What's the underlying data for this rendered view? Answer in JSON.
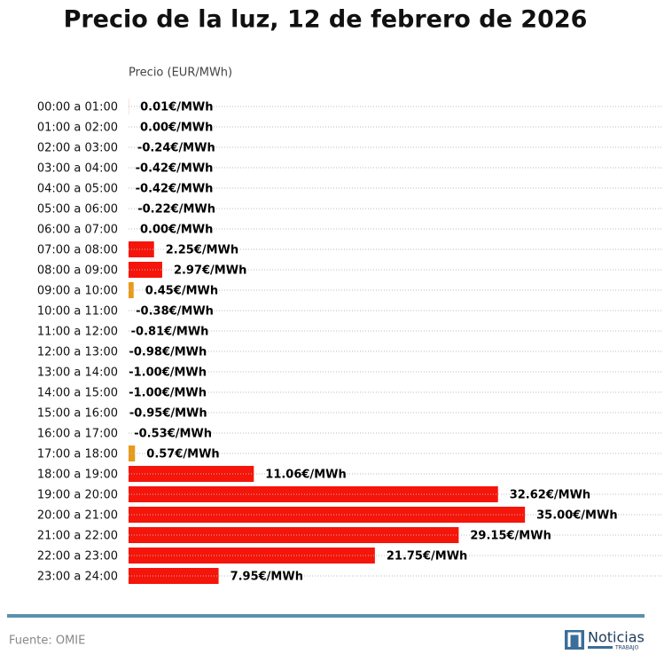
{
  "chart_data": {
    "type": "barh",
    "title": "Precio de la luz, 12 de febrero de 2026",
    "xlabel": "Precio (EUR/MWh)",
    "categories": [
      "00:00 a 01:00",
      "01:00 a 02:00",
      "02:00 a 03:00",
      "03:00 a 04:00",
      "04:00 a 05:00",
      "05:00 a 06:00",
      "06:00 a 07:00",
      "07:00 a 08:00",
      "08:00 a 09:00",
      "09:00 a 10:00",
      "10:00 a 11:00",
      "11:00 a 12:00",
      "12:00 a 13:00",
      "13:00 a 14:00",
      "14:00 a 15:00",
      "15:00 a 16:00",
      "16:00 a 17:00",
      "17:00 a 18:00",
      "18:00 a 19:00",
      "19:00 a 20:00",
      "20:00 a 21:00",
      "21:00 a 22:00",
      "22:00 a 23:00",
      "23:00 a 24:00"
    ],
    "values": [
      0.01,
      0.0,
      -0.24,
      -0.42,
      -0.42,
      -0.22,
      0.0,
      2.25,
      2.97,
      0.45,
      -0.38,
      -0.81,
      -0.98,
      -1.0,
      -1.0,
      -0.95,
      -0.53,
      0.57,
      11.06,
      32.62,
      35.0,
      29.15,
      21.75,
      7.95
    ],
    "value_labels": [
      "0.01€/MWh",
      "0.00€/MWh",
      "-0.24€/MWh",
      "-0.42€/MWh",
      "-0.42€/MWh",
      "-0.22€/MWh",
      "0.00€/MWh",
      "2.25€/MWh",
      "2.97€/MWh",
      "0.45€/MWh",
      "-0.38€/MWh",
      "-0.81€/MWh",
      "-0.98€/MWh",
      "-1.00€/MWh",
      "-1.00€/MWh",
      "-0.95€/MWh",
      "-0.53€/MWh",
      "0.57€/MWh",
      "11.06€/MWh",
      "32.62€/MWh",
      "35.00€/MWh",
      "29.15€/MWh",
      "21.75€/MWh",
      "7.95€/MWh"
    ],
    "colors": [
      "#f5150a",
      "#f5150a",
      "#f5150a",
      "#f5150a",
      "#f5150a",
      "#f5150a",
      "#f5150a",
      "#f5150a",
      "#f5150a",
      "#e89a1c",
      "#f5150a",
      "#f5150a",
      "#f5150a",
      "#f5150a",
      "#f5150a",
      "#f5150a",
      "#f5150a",
      "#e89a1c",
      "#f5150a",
      "#f5150a",
      "#f5150a",
      "#f5150a",
      "#f5150a",
      "#f5150a"
    ],
    "xlim": [
      0,
      47.2
    ],
    "grid": true
  },
  "footer": {
    "source": "Fuente: OMIE",
    "logo": "Noticias",
    "logo_sub": "TRABAJO"
  }
}
